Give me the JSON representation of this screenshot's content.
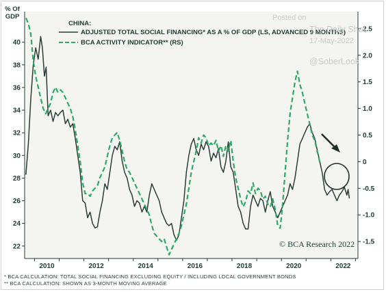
{
  "watermark": {
    "line1": "Posted on",
    "line2": "The Daily Shot",
    "line3": "17-May-2022",
    "handle": "@SoberLook"
  },
  "credit": "© BCA Research 2022",
  "footnotes": [
    "* BCA CALCULATION: TOTAL SOCIAL FINANCING EXCLUDING EQUITY / INCLUDING LOCAL GOVERNMENT BONDS",
    "** BCA CALCULATION: SHOWN AS 3-MONTH MOVING AVERAGE"
  ],
  "colors": {
    "tsf": "#2a3a35",
    "bca": "#2ea866",
    "arrow": "#1e2f2a",
    "panel": "#f4f5f1"
  },
  "chart_data": {
    "type": "line",
    "ylabel_left": "% OF GDP",
    "legend_title": "CHINA:",
    "x_ticks": [
      "2010",
      "2012",
      "2014",
      "2016",
      "2018",
      "2020",
      "2022"
    ],
    "xlim": [
      2009.6,
      2023.1
    ],
    "left_axis": {
      "ticks": [
        22,
        24,
        26,
        28,
        30,
        32,
        34,
        36,
        38,
        40
      ],
      "ylim": [
        20.9,
        42.7
      ]
    },
    "right_axis": {
      "ticks": [
        "-1.5",
        "-1.0",
        "-0.5",
        "0",
        "0.5",
        "1.0",
        "1.5",
        "2.0",
        "2.5"
      ],
      "tick_values": [
        -1.5,
        -1.0,
        -0.5,
        0,
        0.5,
        1.0,
        1.5,
        2.0,
        2.5
      ],
      "ylim": [
        -1.82,
        2.82
      ]
    },
    "series": [
      {
        "name": "ADJUSTED TOTAL SOCIAL FINANCING* AS A % OF GDP (LS, ADVANCED 9 MONTHS)",
        "axis": "left",
        "style": "solid",
        "points": [
          [
            2009.65,
            28.3
          ],
          [
            2009.75,
            31.0
          ],
          [
            2009.85,
            35.0
          ],
          [
            2009.95,
            38.0
          ],
          [
            2010.05,
            39.5
          ],
          [
            2010.15,
            38.5
          ],
          [
            2010.25,
            40.5
          ],
          [
            2010.32,
            39.5
          ],
          [
            2010.4,
            37.0
          ],
          [
            2010.47,
            37.8
          ],
          [
            2010.55,
            33.5
          ],
          [
            2010.65,
            34.0
          ],
          [
            2010.75,
            33.0
          ],
          [
            2010.85,
            33.8
          ],
          [
            2010.95,
            33.5
          ],
          [
            2011.05,
            33.8
          ],
          [
            2011.15,
            34.0
          ],
          [
            2011.25,
            32.8
          ],
          [
            2011.35,
            33.2
          ],
          [
            2011.45,
            32.5
          ],
          [
            2011.55,
            32.8
          ],
          [
            2011.65,
            31.5
          ],
          [
            2011.75,
            30.0
          ],
          [
            2011.85,
            28.5
          ],
          [
            2011.95,
            26.0
          ],
          [
            2012.05,
            25.8
          ],
          [
            2012.15,
            24.5
          ],
          [
            2012.25,
            25.0
          ],
          [
            2012.35,
            24.0
          ],
          [
            2012.45,
            23.6
          ],
          [
            2012.55,
            23.7
          ],
          [
            2012.65,
            25.0
          ],
          [
            2012.75,
            26.0
          ],
          [
            2012.85,
            27.5
          ],
          [
            2012.95,
            27.0
          ],
          [
            2013.05,
            28.5
          ],
          [
            2013.15,
            30.0
          ],
          [
            2013.25,
            30.8
          ],
          [
            2013.35,
            30.5
          ],
          [
            2013.45,
            31.2
          ],
          [
            2013.55,
            29.5
          ],
          [
            2013.65,
            28.5
          ],
          [
            2013.75,
            28.0
          ],
          [
            2013.85,
            27.0
          ],
          [
            2013.95,
            26.5
          ],
          [
            2014.05,
            25.5
          ],
          [
            2014.15,
            26.0
          ],
          [
            2014.25,
            25.8
          ],
          [
            2014.35,
            25.0
          ],
          [
            2014.45,
            25.5
          ],
          [
            2014.55,
            25.0
          ],
          [
            2014.65,
            26.5
          ],
          [
            2014.75,
            27.5
          ],
          [
            2014.85,
            27.0
          ],
          [
            2014.95,
            26.5
          ],
          [
            2015.05,
            26.0
          ],
          [
            2015.15,
            25.0
          ],
          [
            2015.25,
            24.5
          ],
          [
            2015.35,
            24.0
          ],
          [
            2015.45,
            23.8
          ],
          [
            2015.55,
            24.0
          ],
          [
            2015.65,
            23.0
          ],
          [
            2015.75,
            22.5
          ],
          [
            2015.85,
            23.0
          ],
          [
            2015.95,
            24.5
          ],
          [
            2016.05,
            26.0
          ],
          [
            2016.15,
            28.5
          ],
          [
            2016.25,
            30.0
          ],
          [
            2016.35,
            31.0
          ],
          [
            2016.45,
            31.5
          ],
          [
            2016.55,
            30.5
          ],
          [
            2016.65,
            30.0
          ],
          [
            2016.75,
            31.0
          ],
          [
            2016.85,
            30.5
          ],
          [
            2016.95,
            31.2
          ],
          [
            2017.05,
            30.8
          ],
          [
            2017.15,
            29.5
          ],
          [
            2017.25,
            30.2
          ],
          [
            2017.35,
            29.8
          ],
          [
            2017.45,
            30.6
          ],
          [
            2017.55,
            29.0
          ],
          [
            2017.65,
            28.5
          ],
          [
            2017.75,
            29.5
          ],
          [
            2017.85,
            31.2
          ],
          [
            2017.95,
            29.0
          ],
          [
            2018.05,
            28.5
          ],
          [
            2018.15,
            27.0
          ],
          [
            2018.25,
            25.5
          ],
          [
            2018.35,
            25.0
          ],
          [
            2018.45,
            24.0
          ],
          [
            2018.55,
            23.5
          ],
          [
            2018.65,
            23.5
          ],
          [
            2018.75,
            25.5
          ],
          [
            2018.85,
            26.5
          ],
          [
            2018.95,
            26.0
          ],
          [
            2019.05,
            25.5
          ],
          [
            2019.15,
            26.2
          ],
          [
            2019.25,
            26.0
          ],
          [
            2019.35,
            25.0
          ],
          [
            2019.45,
            26.0
          ],
          [
            2019.55,
            26.8
          ],
          [
            2019.65,
            25.5
          ],
          [
            2019.75,
            25.0
          ],
          [
            2019.85,
            24.5
          ],
          [
            2019.95,
            25.0
          ],
          [
            2020.05,
            25.5
          ],
          [
            2020.15,
            26.0
          ],
          [
            2020.25,
            26.5
          ],
          [
            2020.35,
            27.5
          ],
          [
            2020.45,
            27.0
          ],
          [
            2020.55,
            28.0
          ],
          [
            2020.65,
            29.5
          ],
          [
            2020.75,
            31.0
          ],
          [
            2020.85,
            31.5
          ],
          [
            2020.95,
            32.0
          ],
          [
            2021.05,
            32.5
          ],
          [
            2021.15,
            32.8
          ],
          [
            2021.25,
            32.0
          ],
          [
            2021.35,
            31.5
          ],
          [
            2021.45,
            30.5
          ],
          [
            2021.55,
            29.5
          ],
          [
            2021.65,
            28.5
          ],
          [
            2021.75,
            27.0
          ],
          [
            2021.85,
            26.5
          ],
          [
            2021.95,
            26.8
          ],
          [
            2022.05,
            27.0
          ],
          [
            2022.15,
            26.5
          ],
          [
            2022.25,
            26.0
          ],
          [
            2022.35,
            26.5
          ],
          [
            2022.45,
            26.8
          ],
          [
            2022.55,
            27.2
          ],
          [
            2022.65,
            26.5
          ],
          [
            2022.7,
            27.0
          ],
          [
            2022.75,
            26.2
          ]
        ]
      },
      {
        "name": "BCA ACTIVITY INDICATOR** (RS)",
        "axis": "right",
        "style": "dashed",
        "points": [
          [
            2009.65,
            2.7
          ],
          [
            2009.75,
            2.6
          ],
          [
            2009.85,
            2.4
          ],
          [
            2009.95,
            1.9
          ],
          [
            2010.05,
            1.6
          ],
          [
            2010.15,
            1.4
          ],
          [
            2010.25,
            1.2
          ],
          [
            2010.35,
            1.0
          ],
          [
            2010.45,
            0.9
          ],
          [
            2010.55,
            1.0
          ],
          [
            2010.65,
            1.1
          ],
          [
            2010.75,
            1.3
          ],
          [
            2010.85,
            1.4
          ],
          [
            2010.95,
            1.3
          ],
          [
            2011.05,
            1.35
          ],
          [
            2011.15,
            1.3
          ],
          [
            2011.25,
            1.2
          ],
          [
            2011.35,
            1.1
          ],
          [
            2011.45,
            1.0
          ],
          [
            2011.55,
            0.85
          ],
          [
            2011.65,
            0.6
          ],
          [
            2011.75,
            0.3
          ],
          [
            2011.85,
            0.0
          ],
          [
            2011.95,
            -0.4
          ],
          [
            2012.05,
            -0.6
          ],
          [
            2012.15,
            -0.6
          ],
          [
            2012.25,
            -0.65
          ],
          [
            2012.35,
            -0.55
          ],
          [
            2012.45,
            -0.5
          ],
          [
            2012.55,
            -0.45
          ],
          [
            2012.65,
            -0.3
          ],
          [
            2012.75,
            -0.2
          ],
          [
            2012.85,
            -0.1
          ],
          [
            2012.95,
            0.1
          ],
          [
            2013.05,
            0.3
          ],
          [
            2013.15,
            0.45
          ],
          [
            2013.25,
            0.5
          ],
          [
            2013.35,
            0.55
          ],
          [
            2013.45,
            0.4
          ],
          [
            2013.55,
            0.2
          ],
          [
            2013.65,
            0.0
          ],
          [
            2013.75,
            -0.15
          ],
          [
            2013.85,
            -0.2
          ],
          [
            2013.95,
            -0.3
          ],
          [
            2014.05,
            -0.4
          ],
          [
            2014.15,
            -0.5
          ],
          [
            2014.25,
            -0.6
          ],
          [
            2014.35,
            -0.7
          ],
          [
            2014.45,
            -0.8
          ],
          [
            2014.55,
            -0.9
          ],
          [
            2014.65,
            -1.0
          ],
          [
            2014.75,
            -1.2
          ],
          [
            2014.85,
            -1.35
          ],
          [
            2014.95,
            -1.4
          ],
          [
            2015.05,
            -1.45
          ],
          [
            2015.15,
            -1.5
          ],
          [
            2015.25,
            -1.45
          ],
          [
            2015.35,
            -1.6
          ],
          [
            2015.45,
            -1.75
          ],
          [
            2015.55,
            -1.65
          ],
          [
            2015.65,
            -1.55
          ],
          [
            2015.75,
            -1.45
          ],
          [
            2015.85,
            -1.35
          ],
          [
            2015.95,
            -1.2
          ],
          [
            2016.05,
            -1.0
          ],
          [
            2016.15,
            -0.8
          ],
          [
            2016.25,
            -0.5
          ],
          [
            2016.35,
            -0.2
          ],
          [
            2016.45,
            0.0
          ],
          [
            2016.55,
            0.2
          ],
          [
            2016.65,
            0.45
          ],
          [
            2016.75,
            0.35
          ],
          [
            2016.85,
            0.5
          ],
          [
            2016.95,
            0.45
          ],
          [
            2017.05,
            0.3
          ],
          [
            2017.15,
            0.35
          ],
          [
            2017.25,
            0.3
          ],
          [
            2017.35,
            0.4
          ],
          [
            2017.45,
            0.2
          ],
          [
            2017.55,
            0.3
          ],
          [
            2017.65,
            0.1
          ],
          [
            2017.75,
            0.3
          ],
          [
            2017.85,
            0.2
          ],
          [
            2017.95,
            0.4
          ],
          [
            2018.05,
            0.0
          ],
          [
            2018.15,
            -0.3
          ],
          [
            2018.25,
            -0.5
          ],
          [
            2018.35,
            -0.7
          ],
          [
            2018.45,
            -0.85
          ],
          [
            2018.55,
            -0.75
          ],
          [
            2018.65,
            -0.55
          ],
          [
            2018.75,
            -0.6
          ],
          [
            2018.85,
            -0.4
          ],
          [
            2018.95,
            -0.6
          ],
          [
            2019.05,
            -0.5
          ],
          [
            2019.15,
            -0.55
          ],
          [
            2019.25,
            -0.7
          ],
          [
            2019.35,
            -0.65
          ],
          [
            2019.45,
            -0.8
          ],
          [
            2019.55,
            -0.85
          ],
          [
            2019.65,
            -0.7
          ],
          [
            2019.75,
            -0.9
          ],
          [
            2019.85,
            -1.2
          ],
          [
            2019.95,
            -1.25
          ],
          [
            2020.05,
            -0.8
          ],
          [
            2020.15,
            -0.2
          ],
          [
            2020.25,
            0.4
          ],
          [
            2020.35,
            0.9
          ],
          [
            2020.45,
            1.2
          ],
          [
            2020.55,
            1.5
          ],
          [
            2020.65,
            1.7
          ],
          [
            2020.75,
            1.45
          ],
          [
            2020.85,
            1.3
          ],
          [
            2020.95,
            1.1
          ],
          [
            2021.05,
            0.9
          ],
          [
            2021.15,
            0.7
          ],
          [
            2021.25,
            0.5
          ],
          [
            2021.35,
            0.4
          ],
          [
            2021.45,
            0.2
          ],
          [
            2021.55,
            0.0
          ]
        ]
      }
    ]
  }
}
